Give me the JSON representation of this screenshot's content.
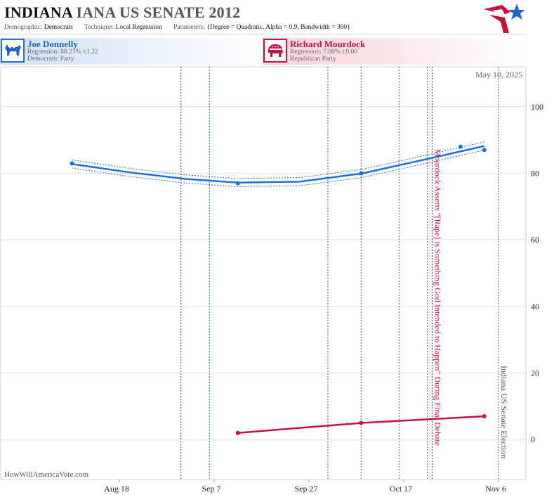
{
  "header": {
    "title_state": "INDIANA",
    "title_race": "IANA US SENATE 2012",
    "demographic_label": "Demographic:",
    "demographic_value": "Democrats",
    "technique_label": "Technique:",
    "technique_value": "Local Regression",
    "parameters_label": "Parameters:",
    "parameters_value": "{Degree = Quadratic, Alpha = 0.9, Bandwidth = 300}"
  },
  "candidates": {
    "dem": {
      "name": "Joe Donnelly",
      "regression": "Regression: 88.21% ±1.22",
      "party": "Democratic Party",
      "color": "#1f6fd9",
      "icon": "donkey-icon"
    },
    "rep": {
      "name": "Richard Mourdock",
      "regression": "Regression: 7.00% ±0.00",
      "party": "Republican Party",
      "color": "#c8103e",
      "icon": "elephant-icon"
    }
  },
  "chart_data": {
    "type": "line",
    "date_label": "May 10, 2025",
    "watermark": "HowWillAmericaVote.com",
    "x_ticks": [
      "Aug 18",
      "Sep 7",
      "Sep 27",
      "Oct 17",
      "Nov 6"
    ],
    "ylim": [
      -12,
      112
    ],
    "y_ticks": [
      0,
      20,
      40,
      60,
      80,
      100
    ],
    "grid": true,
    "series": [
      {
        "name": "Joe Donnelly",
        "color": "#1f6fd9",
        "points": [
          [
            "2012-08-08",
            83
          ],
          [
            "2012-09-12",
            77
          ],
          [
            "2012-10-08",
            80
          ],
          [
            "2012-10-29",
            88
          ],
          [
            "2012-11-03",
            87
          ]
        ],
        "trend": [
          [
            "2012-08-08",
            82.8
          ],
          [
            "2012-08-20",
            80.3
          ],
          [
            "2012-09-01",
            78.3
          ],
          [
            "2012-09-12",
            77.2
          ],
          [
            "2012-09-25",
            77.5
          ],
          [
            "2012-10-08",
            79.9
          ],
          [
            "2012-10-21",
            84.0
          ],
          [
            "2012-11-03",
            88.2
          ]
        ],
        "band": 1.22
      },
      {
        "name": "Richard Mourdock",
        "color": "#c8103e",
        "points": [
          [
            "2012-09-12",
            2
          ],
          [
            "2012-10-08",
            5
          ],
          [
            "2012-11-03",
            7
          ]
        ],
        "trend": [
          [
            "2012-09-12",
            2
          ],
          [
            "2012-10-08",
            5
          ],
          [
            "2012-11-03",
            7
          ]
        ]
      }
    ],
    "events": [
      {
        "date": "2012-08-31",
        "color": "#8b1a50",
        "style": "dotted",
        "label": ""
      },
      {
        "date": "2012-09-06",
        "color": "#2b5fb8",
        "style": "dotted",
        "label": ""
      },
      {
        "date": "2012-10-01",
        "color": "#555555",
        "style": "dotted",
        "label": ""
      },
      {
        "date": "2012-10-08",
        "color": "#555555",
        "style": "dotted",
        "label": ""
      },
      {
        "date": "2012-10-16",
        "color": "#555555",
        "style": "dotted",
        "label": ""
      },
      {
        "date": "2012-10-22",
        "color": "#555555",
        "style": "dotted",
        "label": ""
      },
      {
        "date": "2012-10-23",
        "color": "#c8103e",
        "style": "dotted",
        "label": "Mourdock Asserts \"[Rape] is Something God Intended to Happen\" During Final Debate"
      },
      {
        "date": "2012-11-06",
        "color": "#555555",
        "style": "dotted",
        "label": "Indiana US Senate Election"
      }
    ]
  }
}
